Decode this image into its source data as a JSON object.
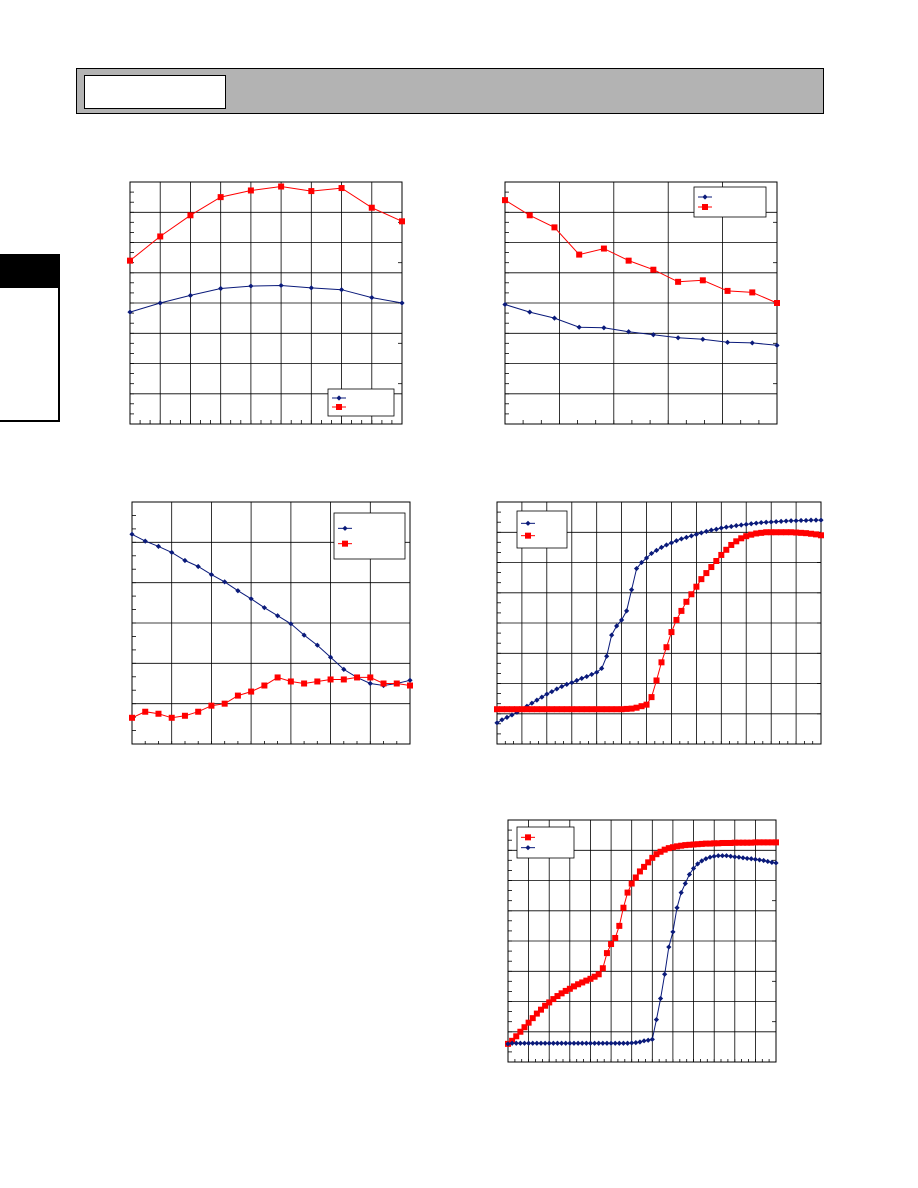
{
  "header": {
    "title": ""
  },
  "side_tab": {
    "label": ""
  },
  "colors": {
    "series_blue": "#0a1a7a",
    "series_red": "#ff0000",
    "header_gray": "#b3b3b3"
  },
  "chart_data": [
    {
      "type": "line",
      "grid": true,
      "legend": "bottom-right",
      "right_ticks": 5,
      "ylim": [
        0,
        8
      ],
      "series": [
        {
          "marker": "diamond",
          "color": "#0a1a7a",
          "x": [
            0,
            1,
            2,
            3,
            4,
            5,
            6,
            7,
            8,
            9
          ],
          "y": [
            3.7,
            4.0,
            4.25,
            4.48,
            4.56,
            4.58,
            4.5,
            4.44,
            4.18,
            4.0
          ]
        },
        {
          "marker": "square",
          "color": "#ff0000",
          "x": [
            0,
            1,
            2,
            3,
            4,
            5,
            6,
            7,
            8,
            9
          ],
          "y": [
            5.4,
            6.2,
            6.9,
            7.5,
            7.72,
            7.85,
            7.7,
            7.8,
            7.15,
            6.7
          ]
        }
      ],
      "xlim": [
        0,
        9
      ]
    },
    {
      "type": "line",
      "grid": true,
      "legend": "top-right",
      "right_ticks": 5,
      "ylim": [
        0,
        8
      ],
      "series": [
        {
          "marker": "diamond",
          "color": "#0a1a7a",
          "x": [
            0,
            1,
            2,
            3,
            4,
            5,
            6,
            7,
            8,
            9,
            10,
            11
          ],
          "y": [
            3.95,
            3.7,
            3.5,
            3.2,
            3.18,
            3.05,
            2.95,
            2.85,
            2.8,
            2.7,
            2.68,
            2.6
          ]
        },
        {
          "marker": "square",
          "color": "#ff0000",
          "x": [
            0,
            1,
            2,
            3,
            4,
            5,
            6,
            7,
            8,
            9,
            10,
            11
          ],
          "y": [
            7.4,
            6.9,
            6.5,
            5.6,
            5.8,
            5.4,
            5.1,
            4.7,
            4.75,
            4.4,
            4.35,
            4.0
          ]
        }
      ],
      "xlim": [
        0,
        11
      ]
    },
    {
      "type": "line",
      "grid": true,
      "legend": "top-right",
      "right_ticks": 0,
      "ylim": [
        0,
        6
      ],
      "series": [
        {
          "marker": "diamond",
          "color": "#0a1a7a",
          "x": [
            0,
            1,
            2,
            3,
            4,
            5,
            6,
            7,
            8,
            9,
            10,
            11,
            12,
            13,
            14,
            15,
            16,
            17,
            18,
            19,
            20,
            21
          ],
          "y": [
            5.2,
            5.03,
            4.9,
            4.75,
            4.55,
            4.4,
            4.2,
            4.02,
            3.8,
            3.6,
            3.38,
            3.18,
            2.98,
            2.7,
            2.45,
            2.15,
            1.85,
            1.65,
            1.5,
            1.45,
            1.5,
            1.58
          ]
        },
        {
          "marker": "square",
          "color": "#ff0000",
          "x": [
            0,
            1,
            2,
            3,
            4,
            5,
            6,
            7,
            8,
            9,
            10,
            11,
            12,
            13,
            14,
            15,
            16,
            17,
            18,
            19,
            20,
            21
          ],
          "y": [
            0.65,
            0.8,
            0.75,
            0.65,
            0.7,
            0.8,
            0.95,
            1.0,
            1.2,
            1.3,
            1.45,
            1.65,
            1.55,
            1.5,
            1.55,
            1.6,
            1.6,
            1.65,
            1.65,
            1.5,
            1.5,
            1.45
          ]
        }
      ],
      "xlim": [
        0,
        21
      ]
    },
    {
      "type": "line",
      "grid": true,
      "legend": "top-left",
      "right_ticks": 7,
      "ylim": [
        0,
        8
      ],
      "series": [
        {
          "marker": "diamond",
          "color": "#0a1a7a",
          "x": [
            0,
            1,
            2,
            3,
            4,
            5,
            6,
            7,
            8,
            9,
            10,
            11,
            12,
            13,
            14,
            15,
            16,
            17,
            18,
            19,
            20,
            21,
            22,
            23,
            24,
            25,
            26,
            27,
            28,
            29,
            30,
            31,
            32,
            33,
            34,
            35,
            36,
            37,
            38,
            39,
            40,
            41,
            42,
            43,
            44,
            45,
            46,
            47,
            48,
            49,
            50,
            51,
            52,
            53,
            54,
            55,
            56,
            57,
            58,
            59,
            60,
            61,
            62,
            63,
            64,
            65
          ],
          "y": [
            0.7,
            0.8,
            0.88,
            0.96,
            1.05,
            1.15,
            1.25,
            1.35,
            1.45,
            1.55,
            1.65,
            1.73,
            1.82,
            1.9,
            1.97,
            2.03,
            2.1,
            2.17,
            2.23,
            2.3,
            2.37,
            2.5,
            2.9,
            3.6,
            3.9,
            4.1,
            4.4,
            5.1,
            5.8,
            6.0,
            6.15,
            6.3,
            6.4,
            6.5,
            6.58,
            6.65,
            6.72,
            6.78,
            6.83,
            6.88,
            6.93,
            6.98,
            7.03,
            7.07,
            7.1,
            7.14,
            7.17,
            7.19,
            7.22,
            7.24,
            7.26,
            7.28,
            7.3,
            7.32,
            7.33,
            7.34,
            7.35,
            7.36,
            7.37,
            7.38,
            7.38,
            7.39,
            7.39,
            7.4,
            7.4,
            7.4
          ]
        },
        {
          "marker": "square",
          "color": "#ff0000",
          "x": [
            0,
            1,
            2,
            3,
            4,
            5,
            6,
            7,
            8,
            9,
            10,
            11,
            12,
            13,
            14,
            15,
            16,
            17,
            18,
            19,
            20,
            21,
            22,
            23,
            24,
            25,
            26,
            27,
            28,
            29,
            30,
            31,
            32,
            33,
            34,
            35,
            36,
            37,
            38,
            39,
            40,
            41,
            42,
            43,
            44,
            45,
            46,
            47,
            48,
            49,
            50,
            51,
            52,
            53,
            54,
            55,
            56,
            57,
            58,
            59,
            60,
            61,
            62,
            63,
            64,
            65
          ],
          "y": [
            1.15,
            1.15,
            1.15,
            1.15,
            1.15,
            1.15,
            1.15,
            1.15,
            1.15,
            1.15,
            1.15,
            1.15,
            1.15,
            1.15,
            1.15,
            1.15,
            1.15,
            1.15,
            1.15,
            1.15,
            1.15,
            1.15,
            1.15,
            1.15,
            1.15,
            1.15,
            1.16,
            1.17,
            1.2,
            1.25,
            1.3,
            1.55,
            2.1,
            2.7,
            3.2,
            3.7,
            4.1,
            4.4,
            4.7,
            4.95,
            5.2,
            5.45,
            5.65,
            5.85,
            6.05,
            6.25,
            6.42,
            6.58,
            6.7,
            6.8,
            6.87,
            6.92,
            6.96,
            6.98,
            7.0,
            7.0,
            7.0,
            7.0,
            7.0,
            7.0,
            6.99,
            6.98,
            6.97,
            6.95,
            6.93,
            6.9
          ]
        }
      ],
      "xlim": [
        0,
        65
      ]
    },
    {
      "type": "line",
      "grid": true,
      "legend": "top-left",
      "right_ticks": 5,
      "ylim": [
        0,
        8
      ],
      "series": [
        {
          "marker": "square",
          "color": "#ff0000",
          "x": [
            0,
            1,
            2,
            3,
            4,
            5,
            6,
            7,
            8,
            9,
            10,
            11,
            12,
            13,
            14,
            15,
            16,
            17,
            18,
            19,
            20,
            21,
            22,
            23,
            24,
            25,
            26,
            27,
            28,
            29,
            30,
            31,
            32,
            33,
            34,
            35,
            36,
            37,
            38,
            39,
            40,
            41,
            42,
            43,
            44,
            45,
            46,
            47,
            48,
            49,
            50,
            51,
            52,
            53,
            54,
            55,
            56,
            57,
            58,
            59,
            60,
            61,
            62,
            63,
            64,
            65
          ],
          "y": [
            0.6,
            0.7,
            0.85,
            1.0,
            1.15,
            1.3,
            1.45,
            1.6,
            1.73,
            1.86,
            1.97,
            2.08,
            2.18,
            2.27,
            2.35,
            2.42,
            2.5,
            2.57,
            2.63,
            2.69,
            2.75,
            2.82,
            2.9,
            3.1,
            3.6,
            3.9,
            4.1,
            4.5,
            5.1,
            5.6,
            5.9,
            6.1,
            6.3,
            6.45,
            6.6,
            6.75,
            6.87,
            6.95,
            7.02,
            7.07,
            7.1,
            7.13,
            7.15,
            7.17,
            7.18,
            7.19,
            7.2,
            7.21,
            7.22,
            7.22,
            7.23,
            7.23,
            7.24,
            7.24,
            7.24,
            7.25,
            7.25,
            7.25,
            7.25,
            7.25,
            7.26,
            7.26,
            7.26,
            7.26,
            7.26,
            7.26
          ]
        },
        {
          "marker": "diamond",
          "color": "#0a1a7a",
          "x": [
            0,
            1,
            2,
            3,
            4,
            5,
            6,
            7,
            8,
            9,
            10,
            11,
            12,
            13,
            14,
            15,
            16,
            17,
            18,
            19,
            20,
            21,
            22,
            23,
            24,
            25,
            26,
            27,
            28,
            29,
            30,
            31,
            32,
            33,
            34,
            35,
            36,
            37,
            38,
            39,
            40,
            41,
            42,
            43,
            44,
            45,
            46,
            47,
            48,
            49,
            50,
            51,
            52,
            53,
            54,
            55,
            56,
            57,
            58,
            59,
            60,
            61,
            62,
            63,
            64,
            65
          ],
          "y": [
            0.6,
            0.62,
            0.62,
            0.62,
            0.62,
            0.62,
            0.62,
            0.62,
            0.62,
            0.62,
            0.62,
            0.62,
            0.62,
            0.62,
            0.62,
            0.62,
            0.62,
            0.62,
            0.62,
            0.62,
            0.62,
            0.62,
            0.62,
            0.62,
            0.62,
            0.62,
            0.62,
            0.62,
            0.62,
            0.62,
            0.63,
            0.64,
            0.66,
            0.7,
            0.72,
            0.75,
            1.4,
            2.1,
            2.9,
            3.8,
            4.3,
            5.1,
            5.6,
            5.9,
            6.2,
            6.4,
            6.55,
            6.65,
            6.72,
            6.77,
            6.8,
            6.82,
            6.82,
            6.82,
            6.8,
            6.78,
            6.77,
            6.75,
            6.73,
            6.72,
            6.7,
            6.68,
            6.66,
            6.63,
            6.6,
            6.58
          ]
        }
      ],
      "xlim": [
        0,
        65
      ]
    }
  ]
}
